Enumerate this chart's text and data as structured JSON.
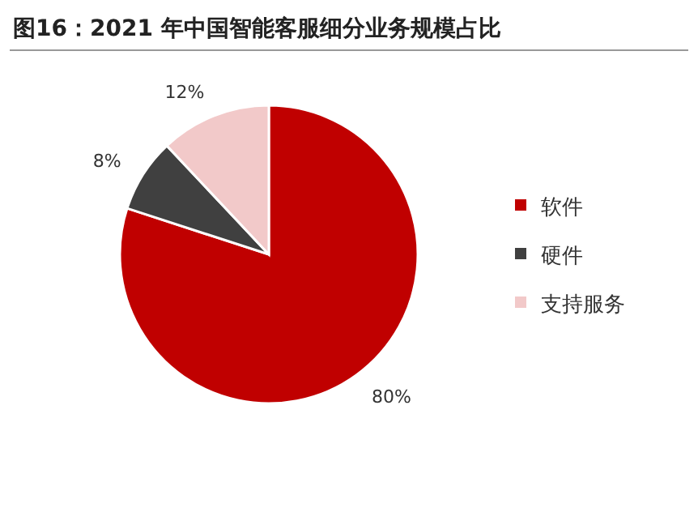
{
  "chart_data": {
    "type": "pie",
    "title": "图16：2021 年中国智能客服细分业务规模占比",
    "categories": [
      "软件",
      "硬件",
      "支持服务"
    ],
    "values": [
      80,
      8,
      12
    ],
    "colors": [
      "#c00000",
      "#404040",
      "#f2c9c9"
    ],
    "value_labels": [
      "80%",
      "8%",
      "12%"
    ],
    "legend": "right"
  }
}
